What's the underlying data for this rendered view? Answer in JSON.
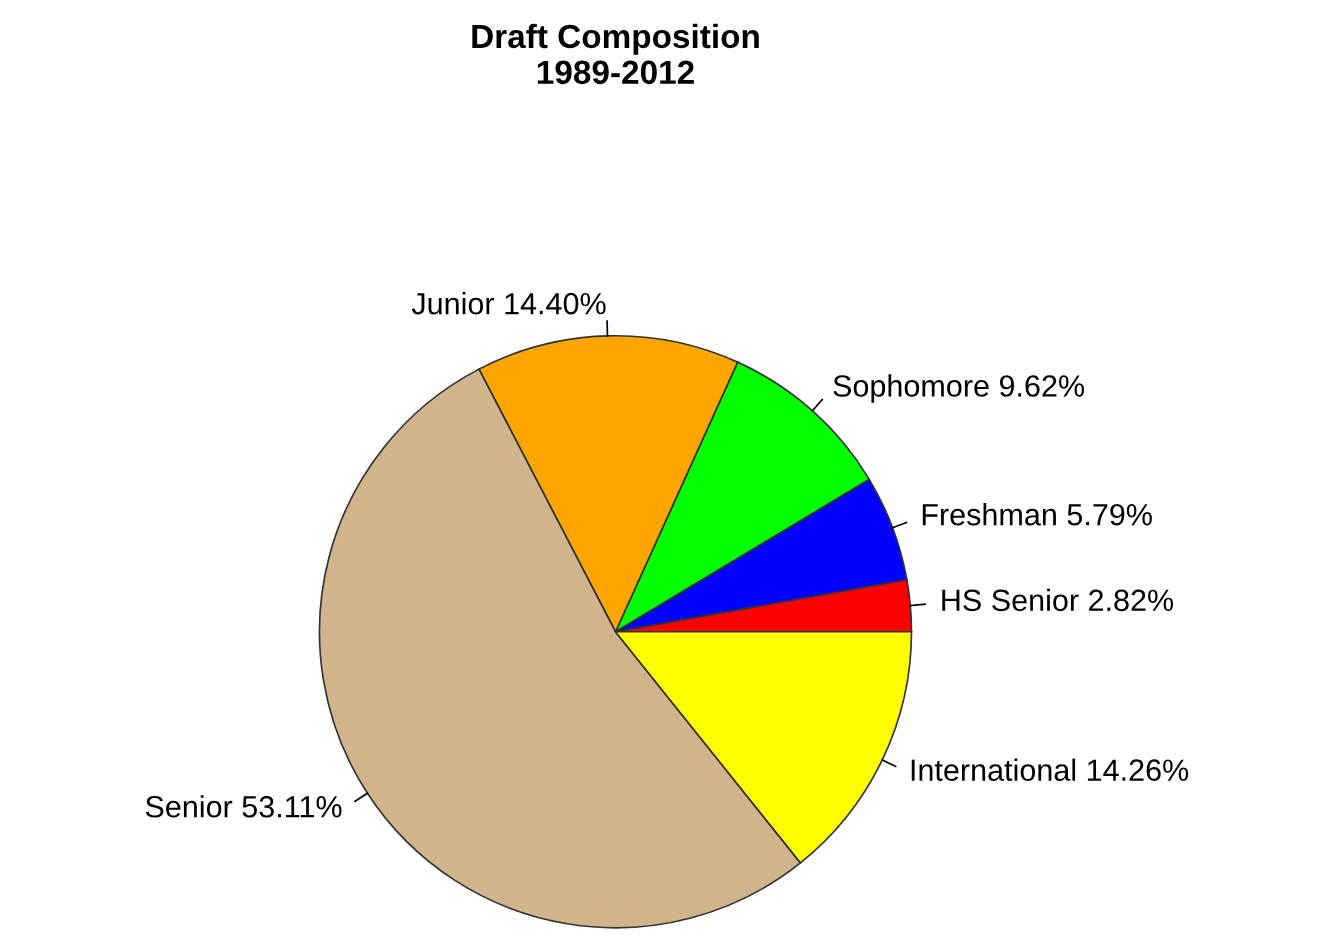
{
  "chart_data": {
    "type": "pie",
    "title": "Draft Composition\n1989-2012",
    "categories": [
      "HS Senior",
      "Freshman",
      "Sophomore",
      "Junior",
      "Senior",
      "International"
    ],
    "values": [
      2.82,
      5.79,
      9.62,
      14.4,
      53.11,
      14.26
    ],
    "value_labels": [
      "2.82%",
      "5.79%",
      "9.62%",
      "14.40%",
      "53.11%",
      "14.26%"
    ],
    "colors": [
      "#ff0000",
      "#0000ff",
      "#00ff00",
      "#ffa500",
      "#d2b48c",
      "#ffff00"
    ]
  }
}
